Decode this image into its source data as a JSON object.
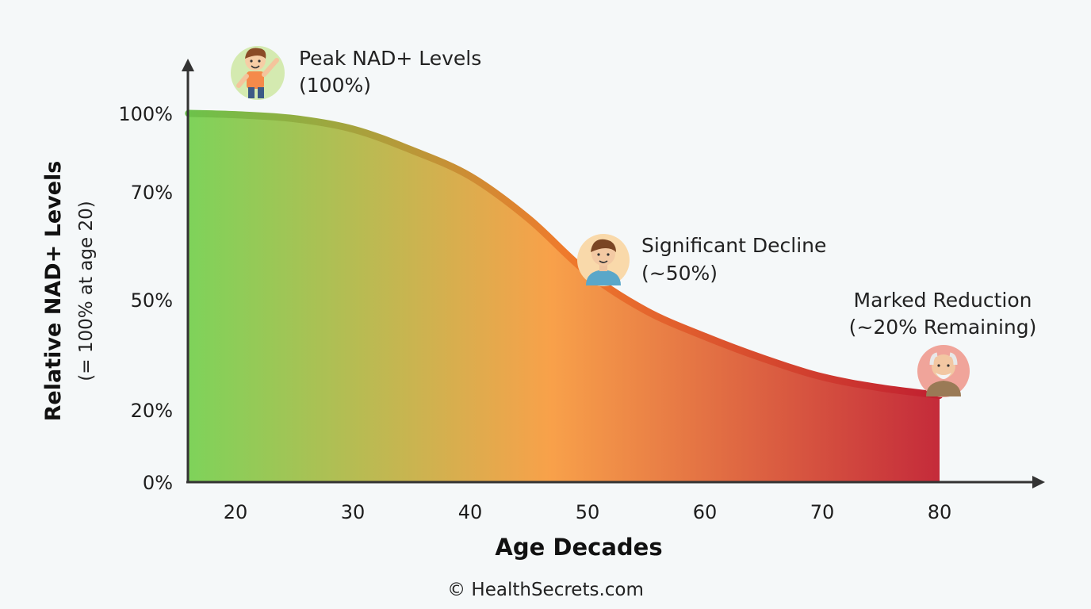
{
  "chart_data": {
    "type": "area",
    "title": "",
    "xlabel": "Age Decades",
    "ylabel": "Relative NAD+ Levels",
    "ylabel_note": "(= 100% at age 20)",
    "x_ticks": [
      "20",
      "30",
      "40",
      "50",
      "60",
      "70",
      "80"
    ],
    "y_ticks": [
      "0%",
      "20%",
      "50%",
      "70%",
      "100%"
    ],
    "xlim": [
      15,
      88
    ],
    "ylim": [
      0,
      100
    ],
    "series": [
      {
        "x": [
          16,
          20,
          25,
          30,
          35,
          40,
          45,
          50,
          55,
          60,
          65,
          70,
          75,
          80
        ],
        "values": [
          100,
          99.5,
          98,
          94,
          86,
          76,
          65,
          55,
          47,
          40,
          34,
          29,
          26,
          24
        ]
      }
    ],
    "grid": false,
    "annotations": [
      {
        "line1": "Peak NAD+ Levels",
        "line2": "(100%)",
        "icon": "child-icon",
        "x": 20,
        "y": 100
      },
      {
        "line1": "Significant Decline",
        "line2": "(~50%)",
        "icon": "adult-icon",
        "x": 50,
        "y": 55
      },
      {
        "line1": "Marked Reduction",
        "line2": "(~20% Remaining)",
        "icon": "elderly-icon",
        "x": 80,
        "y": 24
      }
    ],
    "colors": {
      "start": "#7ed35a",
      "middle": "#f8a14a",
      "end": "#c42a3a"
    }
  },
  "footer": {
    "copyright": "© HealthSecrets.com"
  }
}
